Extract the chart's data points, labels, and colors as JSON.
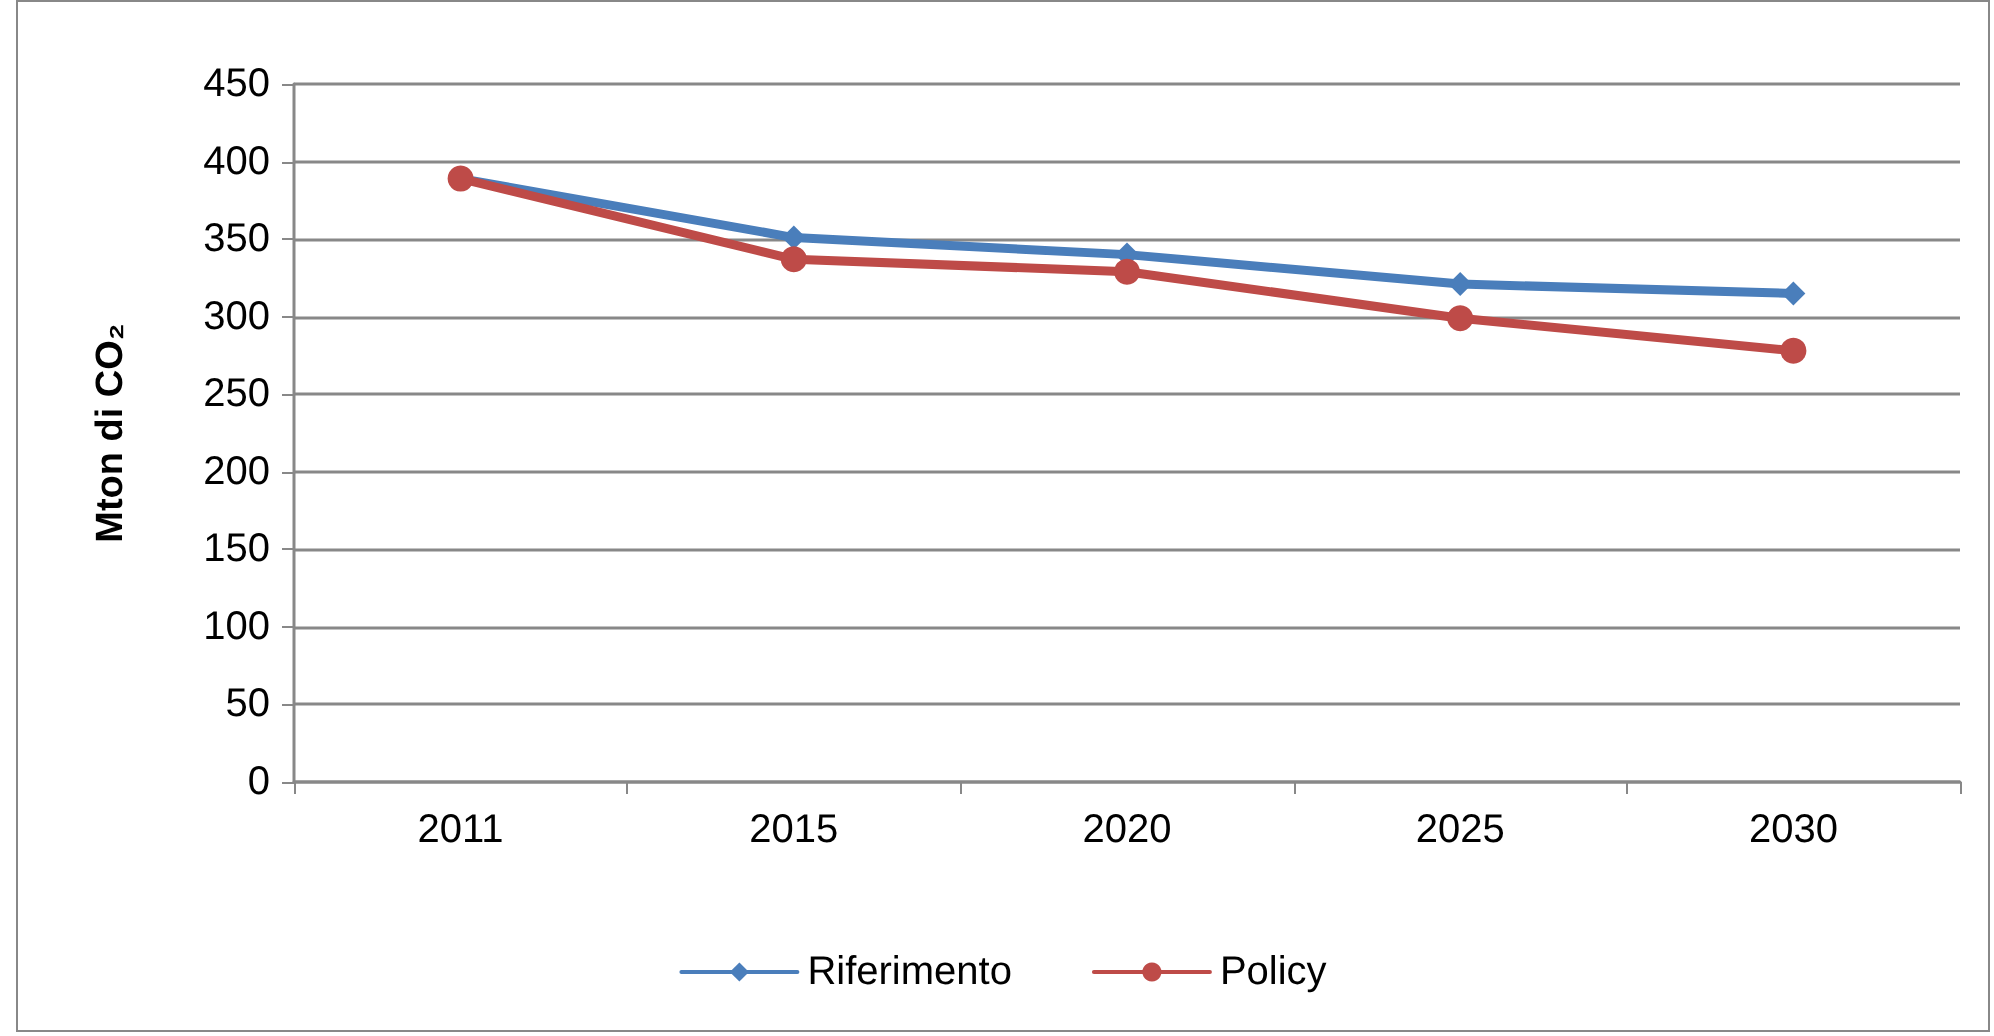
{
  "chart_data": {
    "type": "line",
    "ylabel": "Mton di CO₂",
    "categories": [
      "2011",
      "2015",
      "2020",
      "2025",
      "2030"
    ],
    "series": [
      {
        "name": "Riferimento",
        "color": "#4a7ebb",
        "marker": "diamond",
        "values": [
          389,
          351,
          340,
          321,
          315
        ]
      },
      {
        "name": "Policy",
        "color": "#be4b48",
        "marker": "circle",
        "values": [
          389,
          337,
          329,
          299,
          278
        ]
      }
    ],
    "ylim": [
      0,
      450
    ],
    "yticks": [
      0,
      50,
      100,
      150,
      200,
      250,
      300,
      350,
      400,
      450
    ],
    "grid": "y",
    "legend": "bottom",
    "line_style": "solid"
  }
}
